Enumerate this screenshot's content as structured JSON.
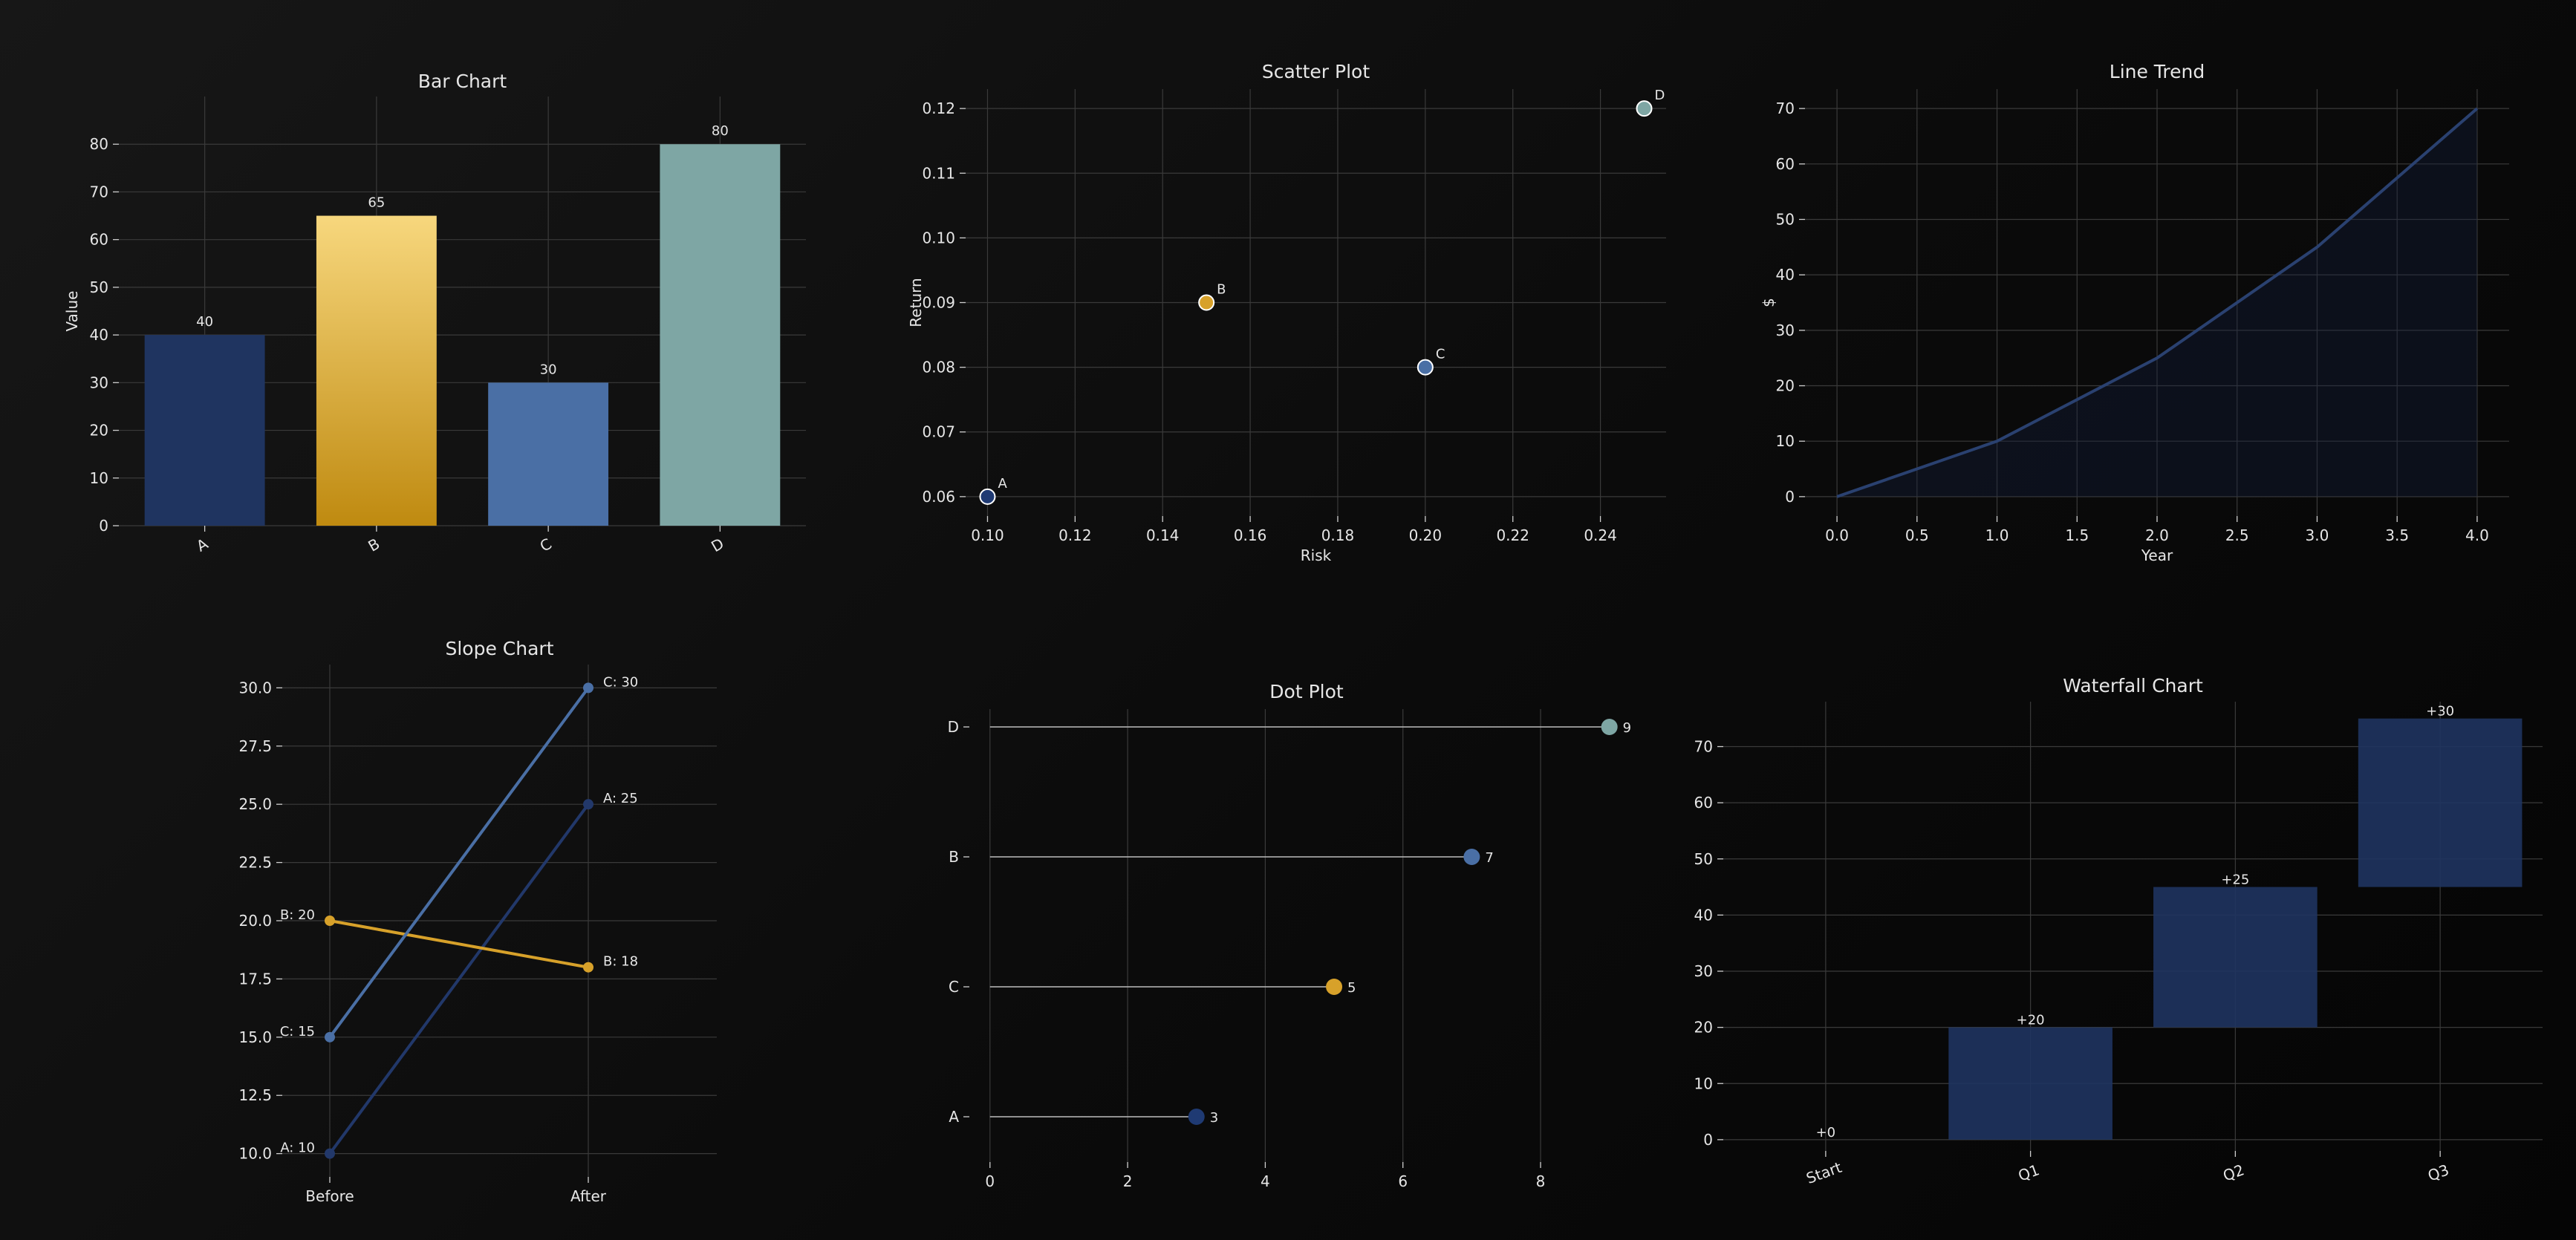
{
  "chart_data": [
    {
      "id": "bar",
      "type": "bar",
      "title": "Bar Chart",
      "xlabel": "",
      "ylabel": "Value",
      "categories": [
        "A",
        "B",
        "C",
        "D"
      ],
      "values": [
        40,
        65,
        30,
        80
      ],
      "ylim": [
        0,
        90
      ],
      "yticks": [
        0,
        10,
        20,
        30,
        40,
        50,
        60,
        70,
        80
      ],
      "colors": [
        "#1f3460",
        "gradient-gold",
        "#4a6fa5",
        "#7ea6a4"
      ],
      "grid": true
    },
    {
      "id": "scatter",
      "type": "scatter",
      "title": "Scatter Plot",
      "xlabel": "Risk",
      "ylabel": "Return",
      "points": [
        {
          "label": "A",
          "x": 0.1,
          "y": 0.06,
          "color": "#1f3a73"
        },
        {
          "label": "B",
          "x": 0.15,
          "y": 0.09,
          "color": "#d7a12a"
        },
        {
          "label": "C",
          "x": 0.2,
          "y": 0.08,
          "color": "#4a6fa5"
        },
        {
          "label": "D",
          "x": 0.25,
          "y": 0.12,
          "color": "#7ea6a4"
        }
      ],
      "xticks": [
        "0.10",
        "0.12",
        "0.14",
        "0.16",
        "0.18",
        "0.20",
        "0.22",
        "0.24"
      ],
      "yticks": [
        "0.06",
        "0.07",
        "0.08",
        "0.09",
        "0.10",
        "0.11",
        "0.12"
      ],
      "xlim": [
        0.095,
        0.255
      ],
      "ylim": [
        0.057,
        0.123
      ],
      "grid": true
    },
    {
      "id": "line",
      "type": "area",
      "title": "Line Trend",
      "xlabel": "Year",
      "ylabel": "$",
      "x": [
        0,
        1,
        2,
        3,
        4
      ],
      "values": [
        0,
        10,
        25,
        45,
        70
      ],
      "xticks": [
        "0.0",
        "0.5",
        "1.0",
        "1.5",
        "2.0",
        "2.5",
        "3.0",
        "3.5",
        "4.0"
      ],
      "yticks": [
        0,
        10,
        20,
        30,
        40,
        50,
        60,
        70
      ],
      "xlim": [
        -0.2,
        4.2
      ],
      "ylim": [
        -3.5,
        73.5
      ],
      "color": "#2a4170",
      "grid": true
    },
    {
      "id": "slope",
      "type": "line",
      "title": "Slope Chart",
      "categories": [
        "Before",
        "After"
      ],
      "series": [
        {
          "name": "A",
          "values": [
            10,
            25
          ],
          "color": "#22386a",
          "labels": [
            "A: 10",
            "A: 25"
          ]
        },
        {
          "name": "B",
          "values": [
            20,
            18
          ],
          "color": "#d7a12a",
          "labels": [
            "B: 20",
            "B: 18"
          ]
        },
        {
          "name": "C",
          "values": [
            15,
            30
          ],
          "color": "#4a6fa5",
          "labels": [
            "C: 15",
            "C: 30"
          ]
        }
      ],
      "yticks": [
        "10.0",
        "12.5",
        "15.0",
        "17.5",
        "20.0",
        "22.5",
        "25.0",
        "27.5",
        "30.0"
      ],
      "ylim": [
        9.0,
        31.0
      ],
      "grid": true
    },
    {
      "id": "dot",
      "type": "scatter",
      "title": "Dot Plot",
      "categories": [
        "A",
        "C",
        "B",
        "D"
      ],
      "values": [
        3,
        5,
        7,
        9
      ],
      "colors": [
        "#1f3a73",
        "#d7a12a",
        "#4a6fa5",
        "#7ea6a4"
      ],
      "xticks": [
        0,
        2,
        4,
        6,
        8
      ],
      "xlim": [
        -0.3,
        9.5
      ],
      "grid": true
    },
    {
      "id": "waterfall",
      "type": "bar",
      "title": "Waterfall Chart",
      "categories": [
        "Start",
        "Q1",
        "Q2",
        "Q3"
      ],
      "bases": [
        0,
        0,
        20,
        45
      ],
      "values": [
        0,
        20,
        25,
        30
      ],
      "labels": [
        "+0",
        "+20",
        "+25",
        "+30"
      ],
      "yticks": [
        0,
        10,
        20,
        30,
        40,
        50,
        60,
        70
      ],
      "ylim": [
        -2,
        78
      ],
      "color": "#1f3460",
      "grid": true
    }
  ]
}
